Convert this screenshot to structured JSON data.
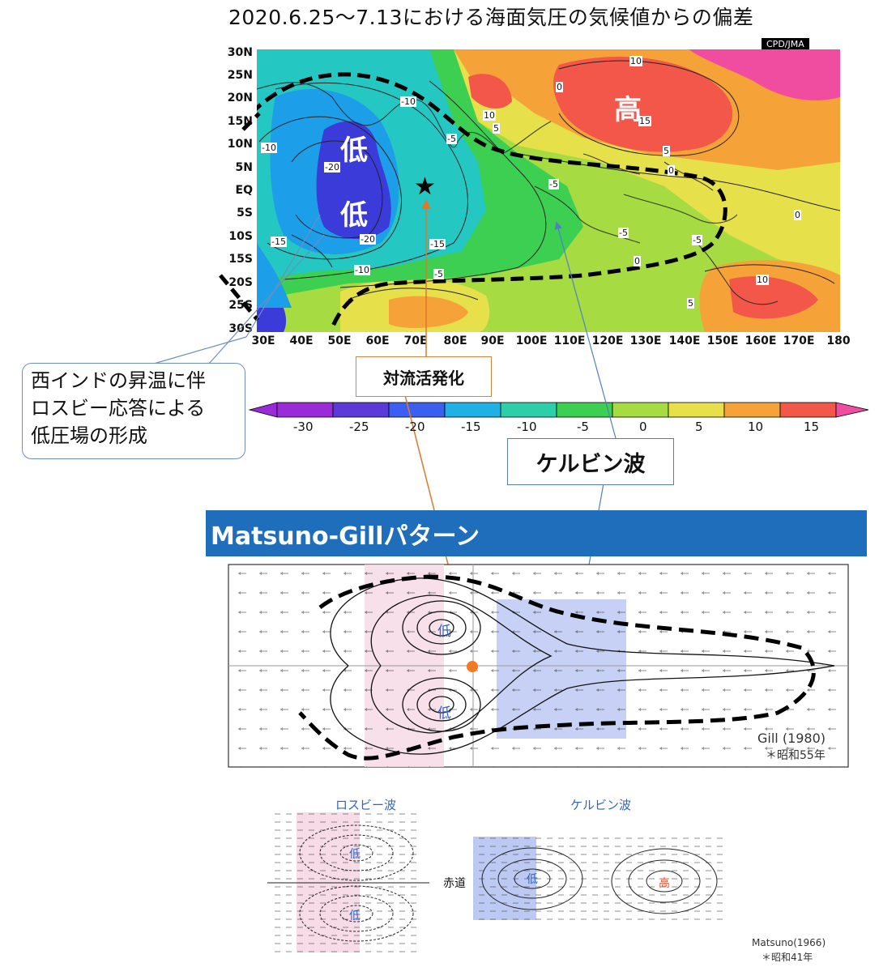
{
  "title": "2020.6.25～7.13における海面気圧の気候値からの偏差",
  "map": {
    "credit": "CPD/JMA",
    "lat_labels": [
      "30N",
      "25N",
      "20N",
      "15N",
      "10N",
      "5N",
      "EQ",
      "5S",
      "10S",
      "15S",
      "20S",
      "25S",
      "30S"
    ],
    "lon_labels": [
      "30E",
      "40E",
      "50E",
      "60E",
      "70E",
      "80E",
      "90E",
      "100E",
      "110E",
      "120E",
      "130E",
      "140E",
      "150E",
      "160E",
      "170E",
      "180"
    ],
    "low1": "低",
    "low2": "低",
    "high": "高",
    "star": "★",
    "contour_labels": [
      "-10",
      "-20",
      "-15",
      "-20",
      "-15",
      "-10",
      "-5",
      "-10",
      "-5",
      "-5",
      "-5",
      "-5",
      "0",
      "10",
      "5",
      "10",
      "15",
      "5",
      "0",
      "0",
      "0",
      "10",
      "5"
    ],
    "colors": {
      "deep_low": "#3b3bd9",
      "low": "#1d9ee8",
      "cyan": "#25c7c2",
      "green": "#32cb53",
      "yellowgreen": "#a6db42",
      "yellow": "#e6e04a",
      "orange": "#f5a339",
      "red": "#f2574a",
      "magenta": "#f04ca0"
    }
  },
  "colorbar": {
    "ticks": [
      "-30",
      "-25",
      "-20",
      "-15",
      "-10",
      "-5",
      "0",
      "5",
      "10",
      "15"
    ],
    "colors": [
      "#9a2bd9",
      "#5b3ad8",
      "#3b5ff0",
      "#1fb0e6",
      "#2ccfa8",
      "#3ccf51",
      "#a6db42",
      "#e6e04a",
      "#f5a339",
      "#f2574a",
      "#f04ca0"
    ]
  },
  "callouts": {
    "indian": [
      "西インドの昇温に伴",
      "ロスビー応答による",
      "低圧場の形成"
    ],
    "convection": "対流活発化",
    "kelvin": "ケルビン波"
  },
  "banner": "Matsuno-Gillパターン",
  "gill": {
    "low_north": "低",
    "low_south": "低",
    "citation": "Gill (1980)",
    "era": "＊昭和55年"
  },
  "matsuno": {
    "rossby_label": "ロスビー波",
    "kelvin_label": "ケルビン波",
    "low_top": "低",
    "low_bottom": "低",
    "equator": "赤道",
    "kelvin_low": "低",
    "kelvin_high": "高",
    "citation": "Matsuno(1966)",
    "era": "＊昭和41年"
  }
}
